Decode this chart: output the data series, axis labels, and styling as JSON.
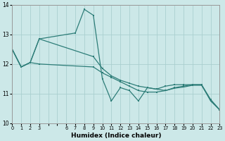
{
  "xlabel": "Humidex (Indice chaleur)",
  "bg_color": "#cce8e8",
  "line_color": "#2d7d78",
  "grid_color": "#aacfcf",
  "xlim": [
    0,
    23
  ],
  "ylim": [
    10,
    14
  ],
  "yticks": [
    10,
    11,
    12,
    13,
    14
  ],
  "series1_x": [
    0,
    1,
    2,
    3,
    7,
    8,
    9,
    10,
    11,
    12,
    13,
    14,
    15,
    16,
    17,
    18,
    19,
    20,
    21,
    22,
    23
  ],
  "series1_y": [
    12.5,
    11.9,
    12.05,
    12.85,
    13.05,
    13.85,
    13.65,
    11.5,
    10.75,
    11.2,
    11.1,
    10.75,
    11.2,
    11.15,
    11.25,
    11.3,
    11.3,
    11.3,
    11.3,
    10.75,
    10.45
  ],
  "series2_x": [
    0,
    1,
    2,
    3,
    9,
    10,
    11,
    12,
    13,
    14,
    15,
    16,
    17,
    18,
    19,
    20,
    21,
    22,
    23
  ],
  "series2_y": [
    12.5,
    11.9,
    12.05,
    12.85,
    12.25,
    11.85,
    11.6,
    11.45,
    11.35,
    11.25,
    11.2,
    11.15,
    11.1,
    11.2,
    11.25,
    11.3,
    11.3,
    10.8,
    10.45
  ],
  "series3_x": [
    0,
    1,
    2,
    3,
    9,
    10,
    11,
    12,
    13,
    14,
    15,
    16,
    17,
    18,
    19,
    20,
    21,
    22,
    23
  ],
  "series3_y": [
    12.5,
    11.9,
    12.05,
    12.0,
    11.9,
    11.7,
    11.55,
    11.4,
    11.25,
    11.1,
    11.05,
    11.05,
    11.1,
    11.18,
    11.22,
    11.28,
    11.28,
    10.78,
    10.45
  ]
}
